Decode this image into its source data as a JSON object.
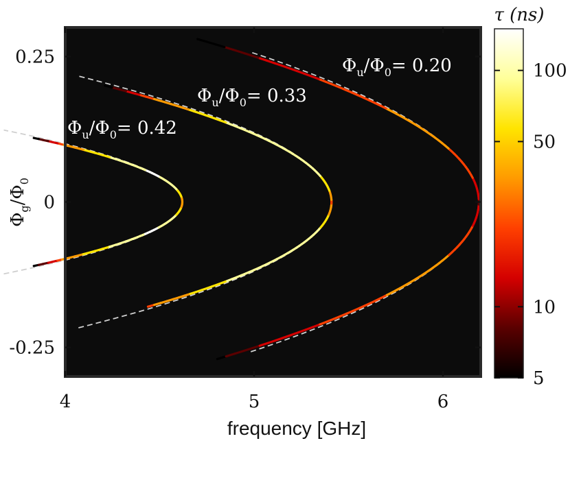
{
  "chart_data": {
    "type": "line",
    "xlabel": "frequency [GHz]",
    "ylabel_main": "Φ",
    "ylabel_sub_num": "g",
    "ylabel_den": "/Φ",
    "ylabel_sub_den": "0",
    "xlim": [
      4.0,
      6.2
    ],
    "ylim": [
      -0.3,
      0.3
    ],
    "x_ticks": [
      {
        "value": 4,
        "label": "4"
      },
      {
        "value": 5,
        "label": "5"
      },
      {
        "value": 6,
        "label": "6"
      }
    ],
    "y_ticks": [
      {
        "value": 0.25,
        "label": "0.25"
      },
      {
        "value": 0,
        "label": "0"
      },
      {
        "value": -0.25,
        "label": "-0.25"
      }
    ],
    "background": "#0c0c0c",
    "colorbar": {
      "title": "τ (ns)",
      "scale": "log",
      "range": [
        5,
        150
      ],
      "ticks": [
        {
          "value": 5,
          "label": "5"
        },
        {
          "value": 10,
          "label": "10"
        },
        {
          "value": 50,
          "label": "50"
        },
        {
          "value": 100,
          "label": "100"
        }
      ],
      "colormap": [
        "#000000",
        "#5a0000",
        "#d40000",
        "#ff4000",
        "#ff9a00",
        "#ffe400",
        "#ffff99",
        "#ffffff"
      ]
    },
    "series": [
      {
        "label_main": "Φ",
        "label_sub_num": "u",
        "label_den": "/Φ",
        "label_sub_den": "0",
        "label_value": "= 0.42",
        "vertex_frequency": 4.62,
        "curvature": 65,
        "data_extent_y": [
          -0.11,
          0.11
        ],
        "fit_extent_y": [
          -0.12,
          0.12
        ],
        "tau_peak_ns": 120
      },
      {
        "label_main": "Φ",
        "label_sub_num": "u",
        "label_den": "/Φ",
        "label_sub_den": "0",
        "label_value": "= 0.33",
        "vertex_frequency": 5.41,
        "curvature": 30,
        "data_extent_y": [
          -0.18,
          0.2
        ],
        "fit_extent_y": [
          -0.21,
          0.21
        ],
        "tau_peak_ns": 110
      },
      {
        "label_main": "Φ",
        "label_sub_num": "u",
        "label_den": "/Φ",
        "label_sub_den": "0",
        "label_value": "= 0.20",
        "vertex_frequency": 6.19,
        "curvature": 19,
        "data_extent_y": [
          -0.27,
          0.28
        ],
        "fit_extent_y": [
          -0.25,
          0.25
        ],
        "tau_peak_ns": 30
      }
    ],
    "fit_line_color": "#cfcfcf",
    "data_line_color": "#e8140a"
  }
}
